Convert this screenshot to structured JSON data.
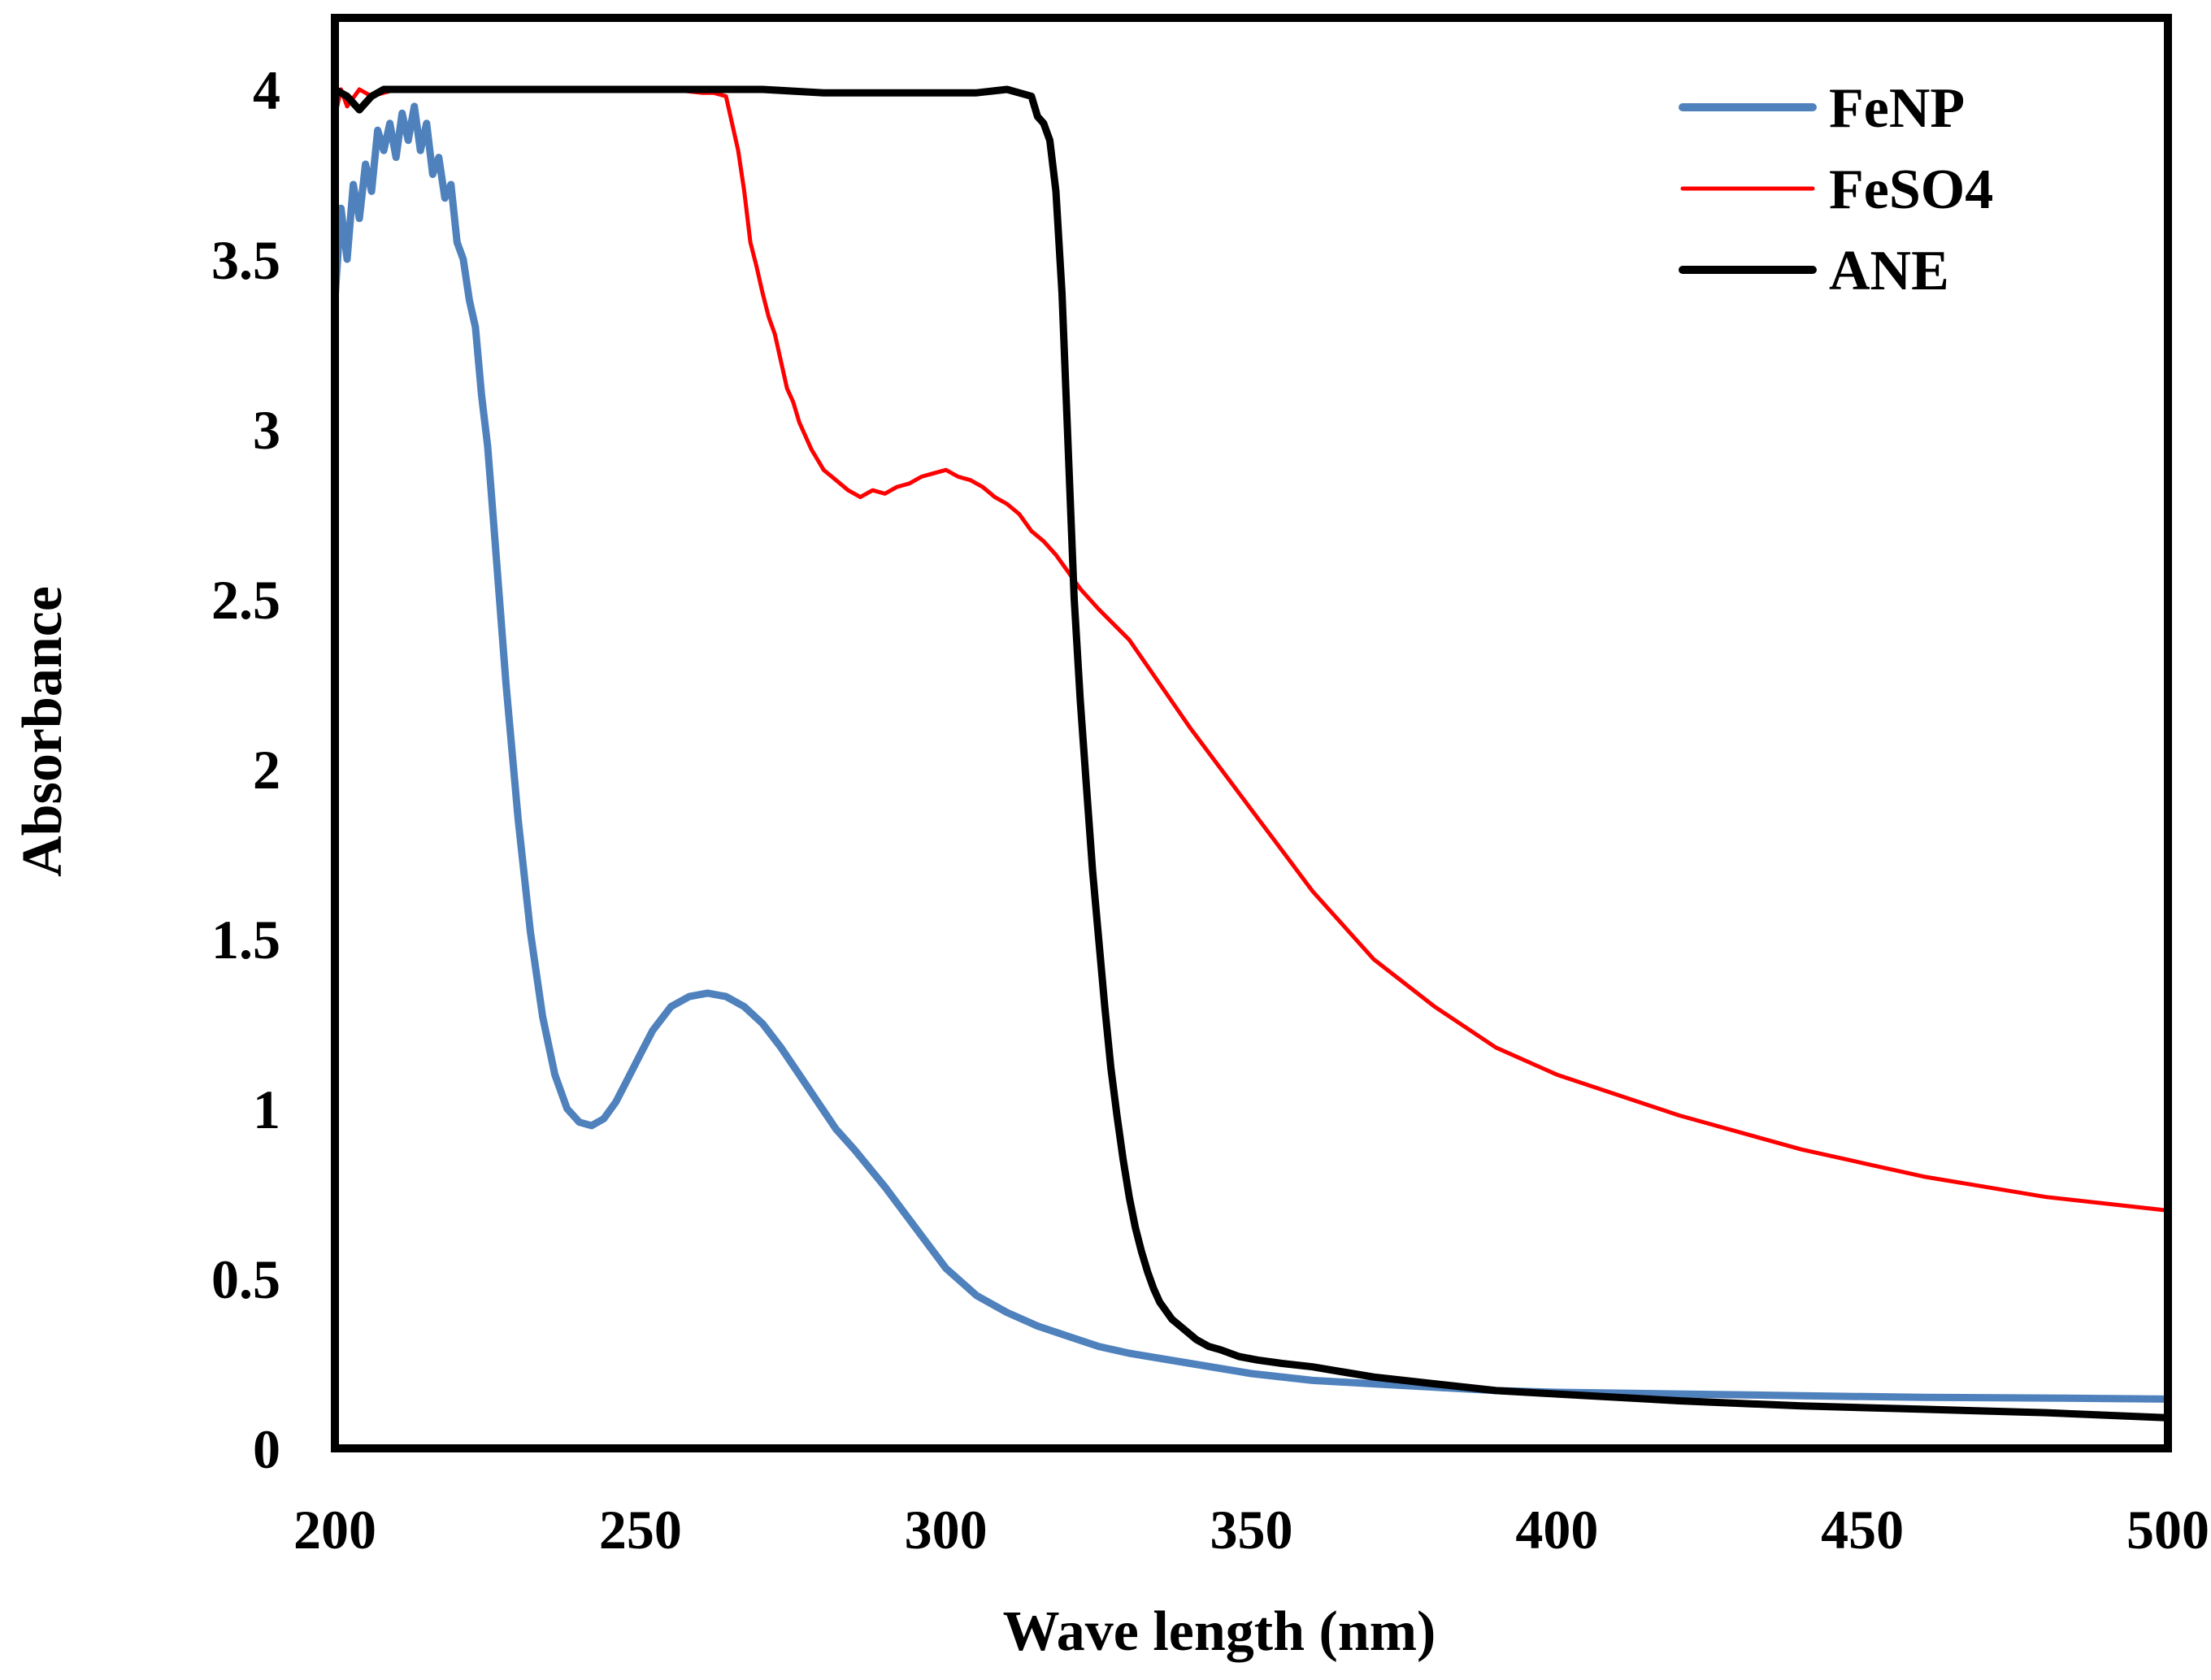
{
  "chart_data": {
    "type": "line",
    "title": "",
    "xlabel": "Wave length (nm)",
    "ylabel": "Absorbance",
    "xlim": [
      200,
      500
    ],
    "ylim": [
      0,
      4
    ],
    "xticks": [
      200,
      250,
      300,
      350,
      400,
      450,
      500
    ],
    "yticks": [
      0,
      0.5,
      1,
      1.5,
      2,
      2.5,
      3,
      3.5,
      4
    ],
    "x_tick_labels": [
      "200",
      "250",
      "300",
      "350",
      "400",
      "450",
      "500"
    ],
    "y_tick_labels": [
      "0",
      "0.5",
      "1",
      "1.5",
      "2",
      "2.5",
      "3",
      "3.5",
      "4"
    ],
    "grid": false,
    "legend_position": "top-right",
    "series": [
      {
        "name": "FeNP",
        "color": "#4f81bd",
        "line_style": "thick",
        "x": [
          200,
          201,
          202,
          203,
          204,
          205,
          206,
          207,
          208,
          209,
          210,
          211,
          212,
          213,
          214,
          215,
          216,
          217,
          218,
          219,
          220,
          221,
          222,
          223,
          224,
          225,
          226,
          228,
          230,
          232,
          234,
          236,
          238,
          240,
          242,
          244,
          246,
          248,
          250,
          252,
          255,
          258,
          261,
          264,
          267,
          270,
          273,
          276,
          279,
          282,
          285,
          290,
          295,
          300,
          305,
          310,
          315,
          320,
          325,
          330,
          340,
          350,
          360,
          370,
          380,
          390,
          400,
          420,
          440,
          460,
          480,
          500
        ],
        "y": [
          3.38,
          3.65,
          3.5,
          3.72,
          3.62,
          3.78,
          3.7,
          3.88,
          3.82,
          3.9,
          3.8,
          3.93,
          3.85,
          3.95,
          3.82,
          3.9,
          3.75,
          3.8,
          3.68,
          3.72,
          3.55,
          3.5,
          3.38,
          3.3,
          3.1,
          2.95,
          2.72,
          2.25,
          1.85,
          1.52,
          1.27,
          1.1,
          1.0,
          0.96,
          0.95,
          0.97,
          1.02,
          1.09,
          1.16,
          1.23,
          1.3,
          1.33,
          1.34,
          1.33,
          1.3,
          1.25,
          1.18,
          1.1,
          1.02,
          0.94,
          0.88,
          0.77,
          0.65,
          0.53,
          0.45,
          0.4,
          0.36,
          0.33,
          0.3,
          0.28,
          0.25,
          0.22,
          0.2,
          0.19,
          0.18,
          0.17,
          0.165,
          0.16,
          0.155,
          0.15,
          0.148,
          0.145
        ]
      },
      {
        "name": "FeSO4",
        "color": "#ff0000",
        "line_style": "thin",
        "x": [
          200,
          201,
          202,
          204,
          206,
          210,
          220,
          230,
          240,
          250,
          255,
          260,
          262,
          264,
          265,
          266,
          267,
          268,
          269,
          270,
          271,
          272,
          273,
          274,
          275,
          276,
          277,
          278,
          279,
          280,
          282,
          284,
          286,
          288,
          290,
          292,
          294,
          296,
          298,
          300,
          302,
          304,
          306,
          308,
          310,
          312,
          314,
          316,
          318,
          320,
          322,
          325,
          330,
          335,
          340,
          345,
          350,
          355,
          360,
          370,
          380,
          390,
          400,
          420,
          440,
          460,
          480,
          500
        ],
        "y": [
          3.92,
          4.0,
          3.95,
          4.0,
          3.98,
          4.0,
          4.0,
          4.0,
          4.0,
          4.0,
          4.0,
          3.99,
          3.99,
          3.98,
          3.9,
          3.82,
          3.7,
          3.55,
          3.48,
          3.4,
          3.33,
          3.28,
          3.2,
          3.12,
          3.08,
          3.02,
          2.98,
          2.94,
          2.91,
          2.88,
          2.85,
          2.82,
          2.8,
          2.82,
          2.81,
          2.83,
          2.84,
          2.86,
          2.87,
          2.88,
          2.86,
          2.85,
          2.83,
          2.8,
          2.78,
          2.75,
          2.7,
          2.67,
          2.63,
          2.58,
          2.53,
          2.47,
          2.38,
          2.25,
          2.12,
          2.0,
          1.88,
          1.76,
          1.64,
          1.44,
          1.3,
          1.18,
          1.1,
          0.98,
          0.88,
          0.8,
          0.74,
          0.7
        ]
      },
      {
        "name": "ANE",
        "color": "#000000",
        "line_style": "thick",
        "x": [
          200,
          202,
          204,
          206,
          208,
          210,
          220,
          230,
          240,
          250,
          260,
          270,
          280,
          290,
          300,
          305,
          310,
          314,
          315,
          316,
          317,
          318,
          319,
          320,
          321,
          322,
          323,
          324,
          325,
          326,
          327,
          328,
          329,
          330,
          331,
          332,
          333,
          334,
          335,
          337,
          339,
          341,
          343,
          345,
          348,
          351,
          355,
          360,
          365,
          370,
          380,
          390,
          400,
          420,
          440,
          460,
          480,
          500
        ],
        "y": [
          4.0,
          3.98,
          3.94,
          3.98,
          4.0,
          4.0,
          4.0,
          4.0,
          4.0,
          4.0,
          4.0,
          4.0,
          3.99,
          3.99,
          3.99,
          3.99,
          4.0,
          3.98,
          3.92,
          3.9,
          3.85,
          3.7,
          3.4,
          2.95,
          2.5,
          2.2,
          1.95,
          1.7,
          1.5,
          1.3,
          1.12,
          0.98,
          0.85,
          0.74,
          0.65,
          0.58,
          0.52,
          0.47,
          0.43,
          0.38,
          0.35,
          0.32,
          0.3,
          0.29,
          0.27,
          0.26,
          0.25,
          0.24,
          0.225,
          0.21,
          0.19,
          0.17,
          0.16,
          0.14,
          0.125,
          0.115,
          0.105,
          0.09
        ]
      }
    ]
  }
}
